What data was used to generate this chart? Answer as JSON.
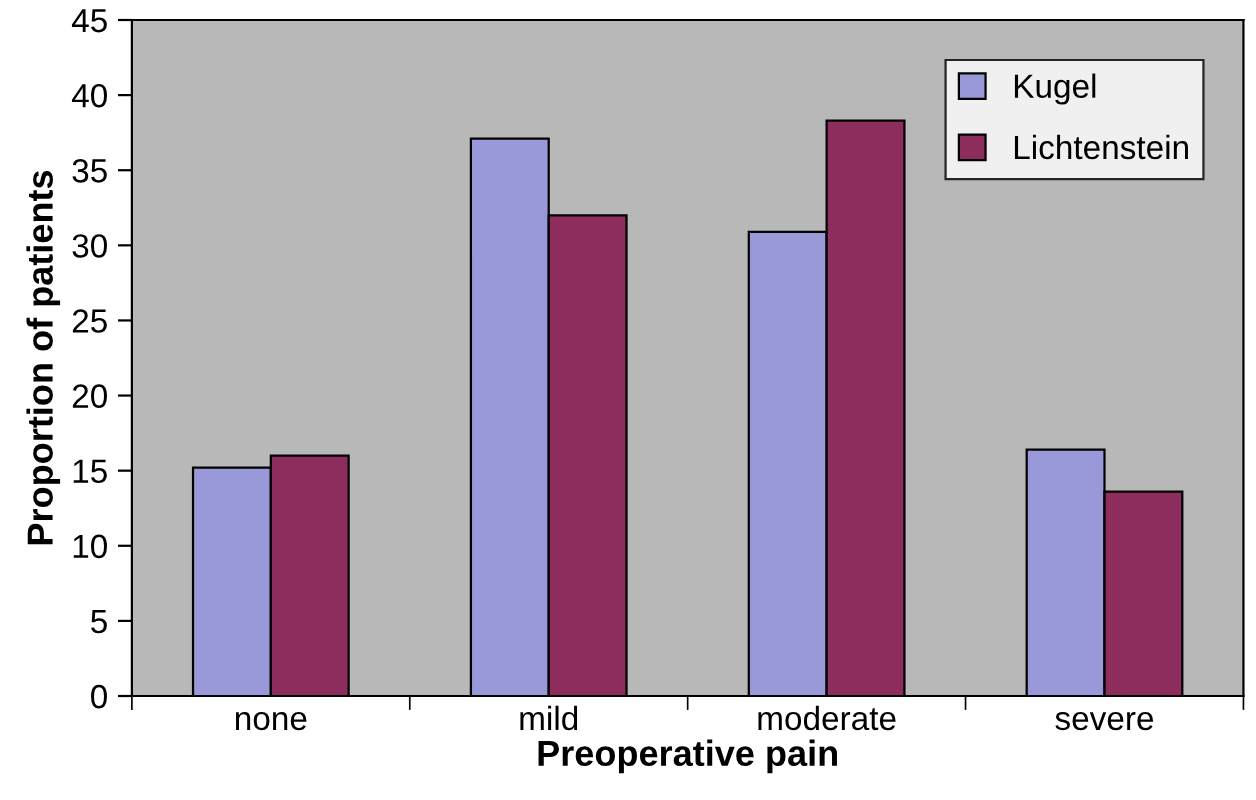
{
  "chart_data": {
    "type": "bar",
    "xlabel": "Preoperative pain",
    "ylabel": "Proportion of patients",
    "categories": [
      "none",
      "mild",
      "moderate",
      "severe"
    ],
    "series": [
      {
        "name": "Kugel",
        "color": "#9999d9",
        "values": [
          15.2,
          37.1,
          30.9,
          16.4
        ]
      },
      {
        "name": "Lichtenstein",
        "color": "#8c2d5e",
        "values": [
          16.0,
          32.0,
          38.3,
          13.6
        ]
      }
    ],
    "ylim": [
      0,
      45
    ],
    "yticks": [
      0,
      5,
      10,
      15,
      20,
      25,
      30,
      35,
      40,
      45
    ],
    "grid": false,
    "legend": "top right"
  }
}
